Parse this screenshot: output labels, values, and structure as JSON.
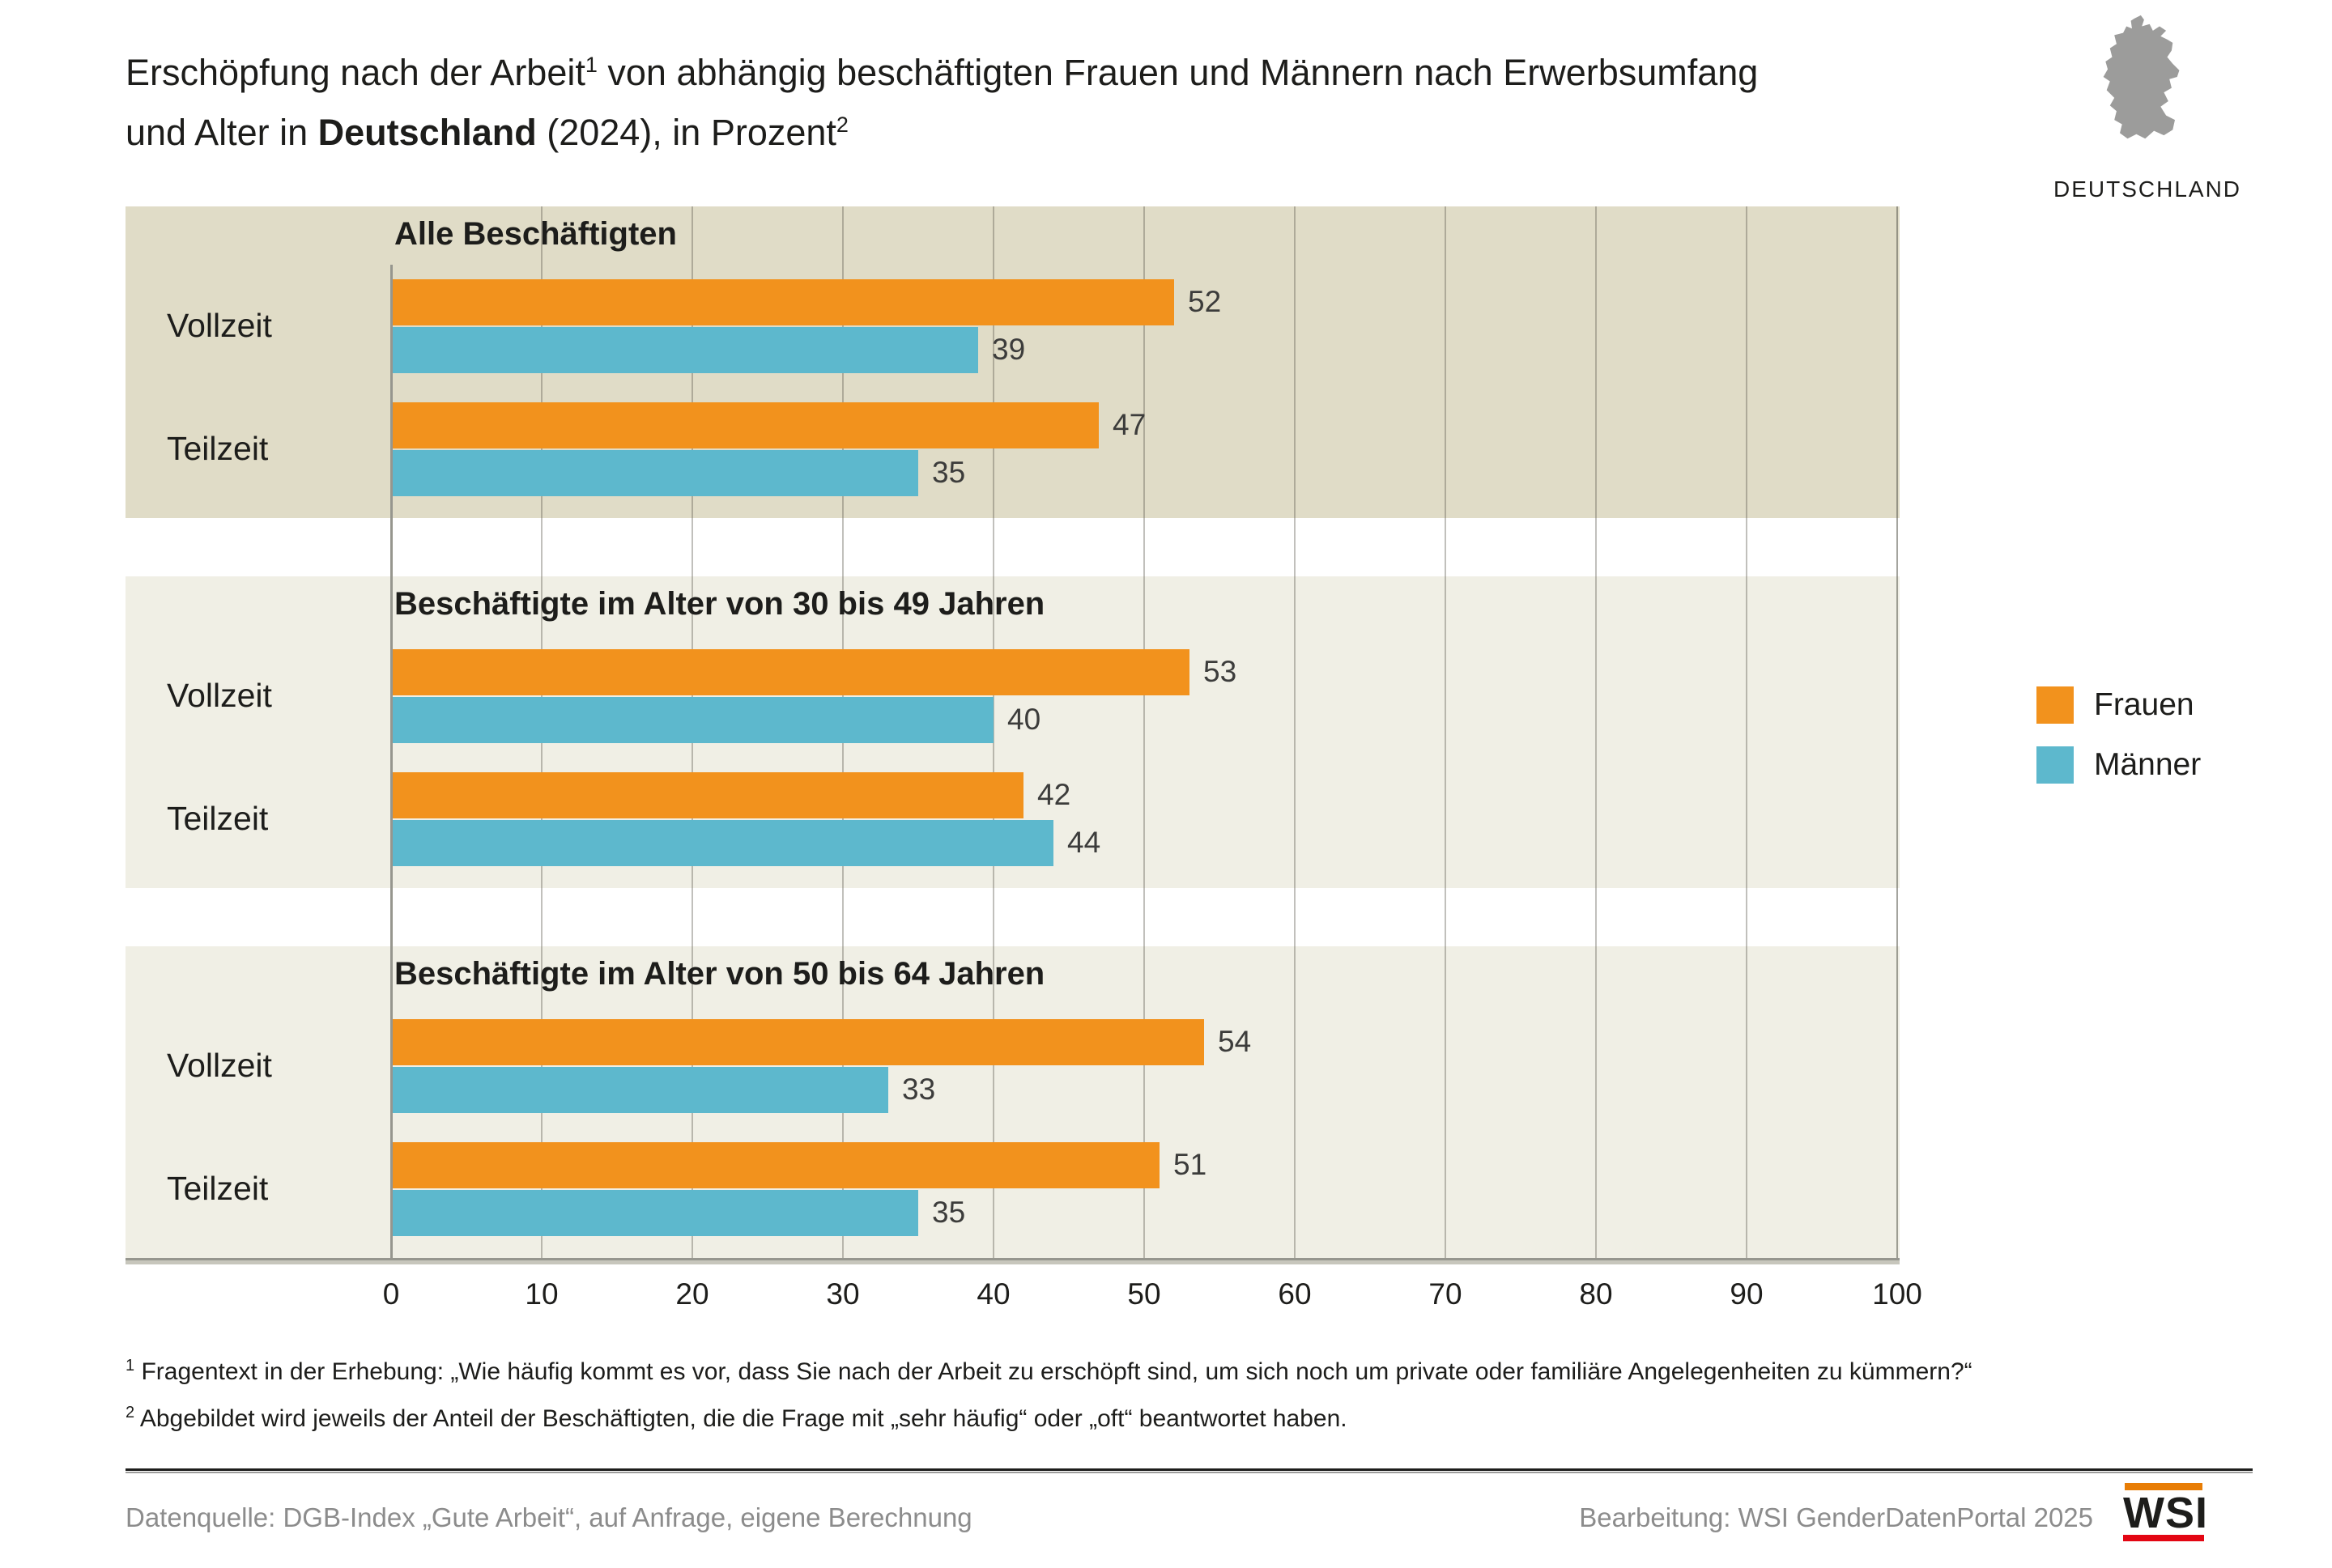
{
  "title": {
    "part1": "Erschöpfung nach der Arbeit",
    "sup1": "1",
    "part2": " von abhängig beschäftigten Frauen und Männern nach Erwerbsumfang",
    "part3": "und Alter in ",
    "bold": "Deutschland",
    "part4": " (2024), in Prozent",
    "sup2": "2"
  },
  "map": {
    "label": "DEUTSCHLAND",
    "color": "#9c9c9b"
  },
  "legend": [
    {
      "label": "Frauen",
      "color": "#f2921d"
    },
    {
      "label": "Männer",
      "color": "#5db8cd"
    }
  ],
  "chart_data": {
    "type": "bar",
    "orientation": "horizontal",
    "unit": "percent",
    "title": "Erschöpfung nach der Arbeit von abhängig beschäftigten Frauen und Männern nach Erwerbsumfang und Alter in Deutschland (2024), in Prozent",
    "categories": [
      "Vollzeit",
      "Teilzeit"
    ],
    "series_names": [
      "Frauen",
      "Männer"
    ],
    "groups": [
      {
        "title": "Alle Beschäftigten",
        "series": [
          {
            "name": "Frauen",
            "values": [
              52,
              47
            ]
          },
          {
            "name": "Männer",
            "values": [
              39,
              35
            ]
          }
        ]
      },
      {
        "title": "Beschäftigte im Alter von 30 bis 49 Jahren",
        "series": [
          {
            "name": "Frauen",
            "values": [
              53,
              42
            ]
          },
          {
            "name": "Männer",
            "values": [
              40,
              44
            ]
          }
        ]
      },
      {
        "title": "Beschäftigte im Alter von 50 bis 64 Jahren",
        "series": [
          {
            "name": "Frauen",
            "values": [
              54,
              51
            ]
          },
          {
            "name": "Männer",
            "values": [
              33,
              35
            ]
          }
        ]
      }
    ],
    "colors": {
      "Frauen": "#f2921d",
      "Männer": "#5db8cd"
    },
    "panel_backgrounds": [
      "#e0dcc7",
      "#f0efe5",
      "#f0efe5"
    ],
    "xlim": [
      0,
      100
    ],
    "x_ticks": [
      0,
      10,
      20,
      30,
      40,
      50,
      60,
      70,
      80,
      90,
      100
    ],
    "grid": true,
    "legend_position": "right",
    "value_labels": true
  },
  "footnotes": [
    {
      "sup": "1",
      "text": "Fragentext in der Erhebung: „Wie häufig kommt es vor, dass Sie nach der Arbeit zu erschöpft sind, um sich noch um private oder familiäre Angelegenheiten zu kümmern?“"
    },
    {
      "sup": "2",
      "text": "Abgebildet wird jeweils der Anteil der Beschäftigten, die die Frage mit „sehr häufig“ oder „oft“ beantwortet haben."
    }
  ],
  "footer": {
    "source": "Datenquelle: DGB-Index „Gute Arbeit“, auf Anfrage, eigene Berechnung",
    "editing": "Bearbeitung: WSI GenderDatenPortal 2025",
    "logo_text": "WSI",
    "logo_top_color": "#e87d05",
    "logo_bottom_color": "#e30613"
  }
}
